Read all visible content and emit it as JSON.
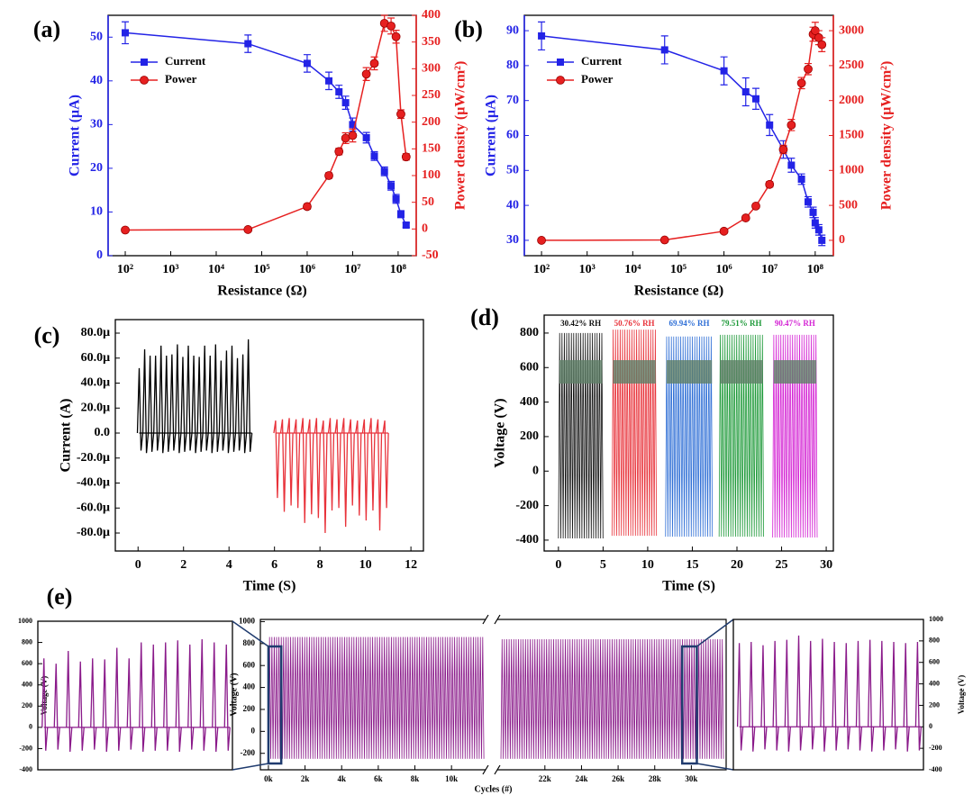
{
  "chart_data": [
    {
      "type": "line",
      "label": "(a)",
      "xlabel": "Resistance (Ω)",
      "ylabel": "Current (μA)",
      "y2label": "Power density (μW/cm²)",
      "xscale": "log",
      "legend": "upper-left",
      "x": [
        100,
        50000,
        1000000,
        3000000,
        5000000,
        7000000,
        10000000,
        20000000,
        30000000,
        50000000,
        70000000,
        90000000,
        115000000,
        150000000
      ],
      "xlim": [
        42,
        250000000
      ],
      "xticks": [
        {
          "value": 100,
          "label": "10²"
        },
        {
          "value": 1000,
          "label": "10³"
        },
        {
          "value": 10000,
          "label": "10⁴"
        },
        {
          "value": 100000,
          "label": "10⁵"
        },
        {
          "value": 1000000,
          "label": "10⁶"
        },
        {
          "value": 10000000,
          "label": "10⁷"
        },
        {
          "value": 100000000,
          "label": "10⁸"
        }
      ],
      "ylim": [
        0,
        55
      ],
      "yticks": [
        0,
        10,
        20,
        30,
        40,
        50
      ],
      "y2lim": [
        -50,
        400
      ],
      "y2ticks": [
        -50,
        0,
        50,
        100,
        150,
        200,
        250,
        300,
        350,
        400
      ],
      "series": [
        {
          "name": "Current",
          "color": "#2323e6",
          "marker": "square",
          "values": [
            51,
            48.5,
            44,
            40,
            37.5,
            35,
            30,
            27,
            22.8,
            19.3,
            16,
            13,
            9.5,
            7
          ],
          "errors": [
            2.5,
            2,
            2,
            2,
            1.5,
            1.5,
            1.5,
            1.2,
            1,
            1,
            1,
            1,
            0.8,
            0.5
          ]
        },
        {
          "name": "Power",
          "color": "#e62020",
          "marker": "circle",
          "axis": "y2",
          "values": [
            -2,
            -1,
            42,
            100,
            145,
            170,
            175,
            290,
            310,
            385,
            380,
            360,
            215,
            135
          ],
          "errors": [
            3,
            3,
            5,
            5,
            6,
            10,
            12,
            12,
            12,
            15,
            15,
            12,
            8,
            6
          ]
        }
      ]
    },
    {
      "type": "line",
      "label": "(b)",
      "xlabel": "Resistance (Ω)",
      "ylabel": "Current (μA)",
      "y2label": "Power density (μW/cm²)",
      "xscale": "log",
      "legend": "upper-left",
      "x": [
        100,
        50000,
        1000000,
        3000000,
        5000000,
        10000000,
        20000000,
        30000000,
        50000000,
        70000000,
        90000000,
        100000000,
        120000000,
        140000000
      ],
      "xlim": [
        42,
        250000000
      ],
      "xticks": [
        {
          "value": 100,
          "label": "10²"
        },
        {
          "value": 1000,
          "label": "10³"
        },
        {
          "value": 10000,
          "label": "10⁴"
        },
        {
          "value": 100000,
          "label": "10⁵"
        },
        {
          "value": 1000000,
          "label": "10⁶"
        },
        {
          "value": 10000000,
          "label": "10⁷"
        },
        {
          "value": 100000000,
          "label": "10⁸"
        }
      ],
      "ylim": [
        25.6,
        94.4
      ],
      "yticks": [
        30,
        40,
        50,
        60,
        70,
        80,
        90
      ],
      "y2lim": [
        -220,
        3220
      ],
      "y2ticks": [
        0,
        500,
        1000,
        1500,
        2000,
        2500,
        3000
      ],
      "series": [
        {
          "name": "Current",
          "color": "#2323e6",
          "marker": "square",
          "values": [
            88.5,
            84.5,
            78.5,
            72.5,
            70.5,
            63,
            56,
            51.5,
            47.5,
            41,
            38,
            35,
            33,
            30
          ],
          "errors": [
            4,
            4,
            4,
            4,
            3,
            3,
            2.5,
            2,
            1.5,
            1.5,
            1.5,
            1.5,
            1.5,
            1.5
          ]
        },
        {
          "name": "Power",
          "color": "#e62020",
          "marker": "circle",
          "axis": "y2",
          "values": [
            0,
            5,
            130,
            320,
            490,
            800,
            1300,
            1650,
            2250,
            2450,
            2950,
            3000,
            2900,
            2800
          ],
          "errors": [
            10,
            10,
            20,
            30,
            30,
            40,
            60,
            80,
            80,
            80,
            100,
            120,
            100,
            100
          ]
        }
      ]
    },
    {
      "type": "spike",
      "label": "(c)",
      "xlabel": "Time (S)",
      "ylabel": "Current (A)",
      "xlim": [
        -1,
        12.55
      ],
      "xticks": [
        0,
        2,
        4,
        6,
        8,
        10,
        12
      ],
      "ylim": [
        -9.44e-05,
        9.08e-05
      ],
      "yticks": [
        {
          "value": 8e-05,
          "label": "80.0μ"
        },
        {
          "value": 6e-05,
          "label": "60.0μ"
        },
        {
          "value": 4e-05,
          "label": "40.0μ"
        },
        {
          "value": 2e-05,
          "label": "20.0μ"
        },
        {
          "value": 0,
          "label": "0.0"
        },
        {
          "value": -2e-05,
          "label": "-20.0μ"
        },
        {
          "value": -4e-05,
          "label": "-40.0μ"
        },
        {
          "value": -6e-05,
          "label": "-60.0μ"
        },
        {
          "value": -8e-05,
          "label": "-80.0μ"
        }
      ],
      "series": [
        {
          "color": "#000000",
          "x": [
            0.05,
            0.29,
            0.53,
            0.77,
            1.01,
            1.25,
            1.49,
            1.73,
            1.97,
            2.21,
            2.45,
            2.69,
            2.93,
            3.17,
            3.41,
            3.65,
            3.89,
            4.13,
            4.37,
            4.61,
            4.85
          ],
          "peaks": [
            5.2e-05,
            6.7e-05,
            6.2e-05,
            6.2e-05,
            7e-05,
            6.2e-05,
            6.3e-05,
            7.1e-05,
            6.1e-05,
            7e-05,
            6.2e-05,
            6.1e-05,
            7e-05,
            6.2e-05,
            7.1e-05,
            5.8e-05,
            6.6e-05,
            7e-05,
            6e-05,
            6.3e-05,
            7.5e-05
          ],
          "troughs": [
            -1.4e-05,
            -1.6e-05,
            -1.5e-05,
            -1.4e-05,
            -1.6e-05,
            -1.5e-05,
            -1.4e-05,
            -1.6e-05,
            -1.5e-05,
            -1.4e-05,
            -1.6e-05,
            -1.5e-05,
            -1.4e-05,
            -1.6e-05,
            -1.5e-05,
            -1.4e-05,
            -1.6e-05,
            -1.5e-05,
            -1.4e-05,
            -1.6e-05,
            -1.5e-05
          ]
        },
        {
          "color": "#e8323a",
          "x": [
            6.05,
            6.35,
            6.65,
            6.95,
            7.25,
            7.55,
            7.85,
            8.15,
            8.45,
            8.75,
            9.05,
            9.35,
            9.65,
            9.95,
            10.25,
            10.55,
            10.85
          ],
          "peaks": [
            1e-05,
            1.1e-05,
            1.2e-05,
            1.1e-05,
            1.2e-05,
            1.1e-05,
            1.2e-05,
            1e-05,
            1.2e-05,
            1.1e-05,
            1.2e-05,
            1.1e-05,
            1e-05,
            1.1e-05,
            1.2e-05,
            1.1e-05,
            1e-05
          ],
          "troughs": [
            -5.2e-05,
            -6.3e-05,
            -5.8e-05,
            -6e-05,
            -7.2e-05,
            -6.5e-05,
            -6.8e-05,
            -8e-05,
            -6.2e-05,
            -6e-05,
            -7.5e-05,
            -5.8e-05,
            -6.6e-05,
            -7e-05,
            -6.2e-05,
            -7.8e-05,
            -6e-05
          ]
        }
      ]
    },
    {
      "type": "oscillation",
      "label": "(d)",
      "xlabel": "Time (S)",
      "ylabel": "Voltage (V)",
      "xlim": [
        -1.6,
        30.8
      ],
      "xticks": [
        0,
        5,
        10,
        15,
        20,
        25,
        30
      ],
      "ylim": [
        -463,
        904
      ],
      "yticks": [
        -400,
        -200,
        0,
        200,
        400,
        600,
        800
      ],
      "series": [
        {
          "name": "30.42% RH",
          "color": "#111111",
          "x": [
            0,
            5
          ],
          "values": [
            800,
            -390
          ]
        },
        {
          "name": "50.76% RH",
          "color": "#e8323a",
          "x": [
            6,
            11
          ],
          "values": [
            820,
            -375
          ]
        },
        {
          "name": "69.94% RH",
          "color": "#2f6fd6",
          "x": [
            12,
            17.3
          ],
          "values": [
            780,
            -380
          ]
        },
        {
          "name": "79.51% RH",
          "color": "#1f9a3a",
          "x": [
            18,
            23
          ],
          "values": [
            790,
            -380
          ]
        },
        {
          "name": "90.47% RH",
          "color": "#d424d4",
          "x": [
            24,
            29
          ],
          "values": [
            790,
            -385
          ]
        }
      ]
    },
    {
      "type": "spike",
      "label": "(e)",
      "ylabel": "Voltage (V)",
      "ylim": [
        -400,
        1000
      ],
      "yticks": [
        -400,
        -200,
        0,
        200,
        400,
        600,
        800,
        1000
      ],
      "series": [
        {
          "color": "#8a1a8a",
          "peaks": [
            650,
            600,
            720,
            620,
            650,
            640,
            750,
            650,
            800,
            780,
            800,
            820,
            780,
            830,
            800,
            780
          ],
          "troughs": [
            -220,
            -210,
            -230,
            -220,
            -210,
            -230,
            -220,
            -210,
            -230,
            -220,
            -220,
            -230,
            -210,
            -220,
            -230,
            -220
          ]
        }
      ]
    },
    {
      "type": "oscillation",
      "xlabel": "Cycles (#)",
      "ylabel": "Voltage (V)",
      "xlim": [
        -440,
        31900
      ],
      "xbreak": [
        11860,
        19400
      ],
      "xticks": [
        {
          "value": 0,
          "label": "0k"
        },
        {
          "value": 2000,
          "label": "2k"
        },
        {
          "value": 4000,
          "label": "4k"
        },
        {
          "value": 6000,
          "label": "6k"
        },
        {
          "value": 8000,
          "label": "8k"
        },
        {
          "value": 10000,
          "label": "10k"
        },
        {
          "value": 22000,
          "label": "22k"
        },
        {
          "value": 24000,
          "label": "24k"
        },
        {
          "value": 26000,
          "label": "26k"
        },
        {
          "value": 28000,
          "label": "28k"
        },
        {
          "value": 30000,
          "label": "30k"
        }
      ],
      "ylim": [
        -350,
        1020
      ],
      "yticks": [
        -200,
        0,
        200,
        400,
        600,
        800,
        1000
      ],
      "highlight": [
        [
          0,
          700
        ],
        [
          29500,
          30300
        ]
      ],
      "series": [
        {
          "color": "#8a1a8a",
          "x": [
            0,
            11800
          ],
          "values": [
            860,
            -250
          ]
        },
        {
          "color": "#8a1a8a",
          "x": [
            19600,
            31800
          ],
          "values": [
            840,
            -250
          ]
        }
      ]
    },
    {
      "type": "spike",
      "ylabel": "Voltage (V)",
      "yaxis": "right",
      "ylim": [
        -400,
        1000
      ],
      "yticks": [
        -400,
        -200,
        0,
        200,
        400,
        600,
        800,
        1000
      ],
      "series": [
        {
          "color": "#8a1a8a",
          "peaks": [
            780,
            790,
            760,
            800,
            810,
            850,
            800,
            820,
            790,
            780,
            800,
            810,
            800,
            790,
            780,
            790
          ],
          "troughs": [
            -220,
            -230,
            -210,
            -220,
            -230,
            -220,
            -210,
            -230,
            -220,
            -210,
            -220,
            -230,
            -220,
            -210,
            -230,
            -220
          ]
        }
      ]
    }
  ]
}
